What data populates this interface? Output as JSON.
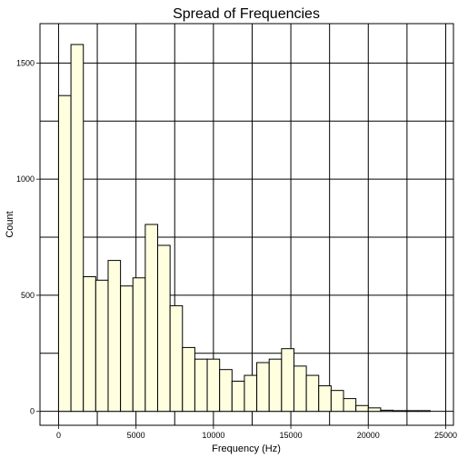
{
  "chart_data": {
    "type": "bar",
    "title": "Spread of Frequencies",
    "xlabel": "Frequency (Hz)",
    "ylabel": "Count",
    "bin_width": 800,
    "bin_starts": [
      0,
      800,
      1600,
      2400,
      3200,
      4000,
      4800,
      5600,
      6400,
      7200,
      8000,
      8800,
      9600,
      10400,
      11200,
      12000,
      12800,
      13600,
      14400,
      15200,
      16000,
      16800,
      17600,
      18400,
      19200,
      20000,
      20800,
      21600,
      22400,
      23200
    ],
    "values": [
      1360,
      1580,
      580,
      565,
      650,
      540,
      575,
      805,
      715,
      455,
      275,
      225,
      225,
      180,
      130,
      155,
      210,
      225,
      270,
      195,
      155,
      110,
      90,
      55,
      25,
      15,
      5,
      3,
      3,
      3
    ],
    "xlim": [
      -1200,
      25500
    ],
    "ylim": [
      -60,
      1670
    ],
    "xticks": [
      0,
      5000,
      10000,
      15000,
      20000,
      25000
    ],
    "yticks": [
      0,
      500,
      1000,
      1500
    ],
    "grid": true,
    "bar_fill": "#ffffe0",
    "bar_stroke": "#000000"
  }
}
